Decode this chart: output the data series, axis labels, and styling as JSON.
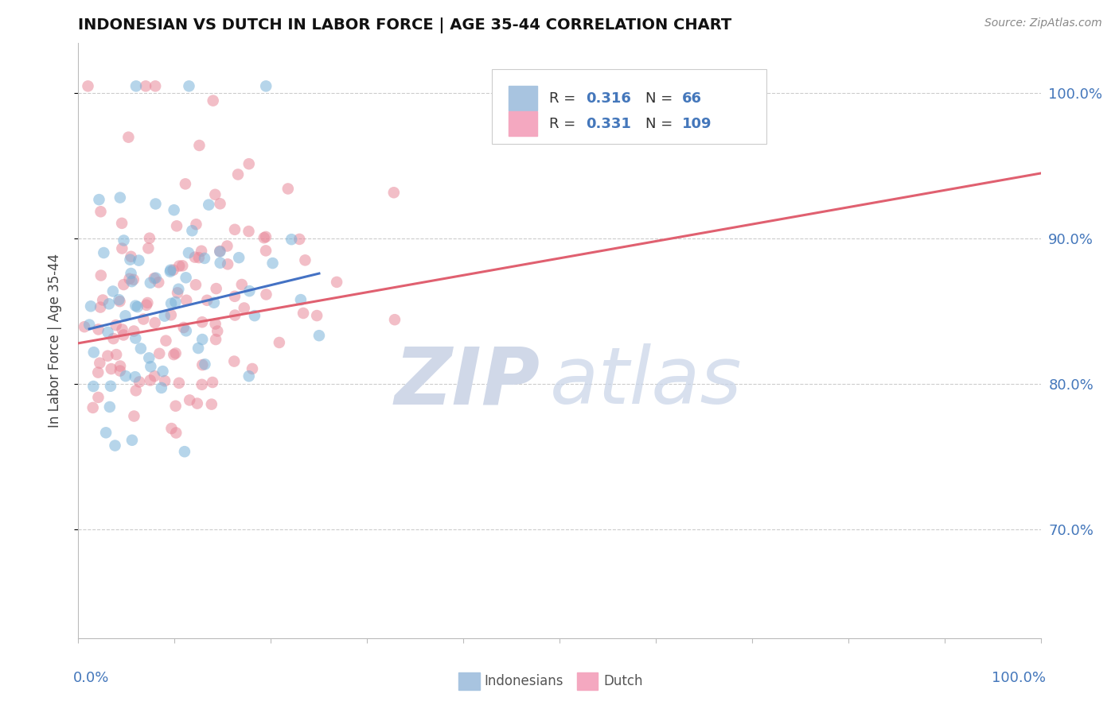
{
  "title": "INDONESIAN VS DUTCH IN LABOR FORCE | AGE 35-44 CORRELATION CHART",
  "source": "Source: ZipAtlas.com",
  "ylabel": "In Labor Force | Age 35-44",
  "indonesian_color": "#7ab3d9",
  "dutch_color": "#e8899a",
  "indonesian_trend_color": "#4472c4",
  "dutch_trend_color": "#e06070",
  "legend_blue_color": "#a8c4e0",
  "legend_pink_color": "#f4a8c0",
  "indonesian_R": 0.316,
  "indonesian_N": 66,
  "dutch_R": 0.331,
  "dutch_N": 109,
  "xlim": [
    0.0,
    1.0
  ],
  "ylim": [
    0.625,
    1.035
  ],
  "ytick_vals": [
    0.7,
    0.8,
    0.9,
    1.0
  ],
  "ytick_labels": [
    "70.0%",
    "80.0%",
    "90.0%",
    "100.0%"
  ],
  "watermark_zip_color": "#d0d8e8",
  "watermark_atlas_color": "#c8d4e8",
  "grid_color": "#cccccc",
  "grid_style": "--"
}
